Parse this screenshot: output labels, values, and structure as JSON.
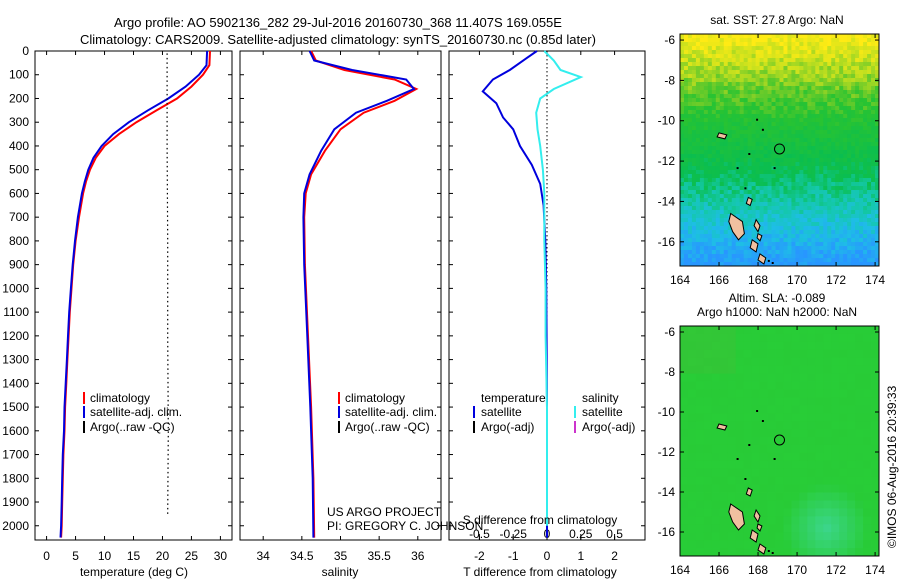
{
  "title": {
    "line1": "Argo profile: AO 5902136_282 29-Jul-2016 20160730_368 11.407S 169.055E",
    "line2": "Climatology: CARS2009. Satellite-adjusted climatology: synTS_20160730.nc (0.85d later)"
  },
  "colors": {
    "climatology": "#ff0000",
    "satellite": "#0000dd",
    "argo": "#000000",
    "satellite_s": "#33eeee",
    "argo_s": "#cc33cc"
  },
  "chart_data": [
    {
      "type": "line",
      "name": "temperature-profile",
      "xlabel": "temperature (deg C)",
      "xlim": [
        -2,
        32
      ],
      "ylim": [
        2060,
        0
      ],
      "xticks": [
        0,
        5,
        10,
        15,
        20,
        25,
        30
      ],
      "yticks": [
        0,
        100,
        200,
        300,
        400,
        500,
        600,
        700,
        800,
        900,
        1000,
        1100,
        1200,
        1300,
        1400,
        1500,
        1600,
        1700,
        1800,
        1900,
        2000
      ],
      "legend": [
        "climatology",
        "satellite-adj. clim.",
        "Argo(..raw -QC)"
      ],
      "series": [
        {
          "name": "climatology",
          "color": "climatology",
          "points": [
            [
              28.2,
              0
            ],
            [
              28.1,
              60
            ],
            [
              27,
              100
            ],
            [
              25,
              150
            ],
            [
              22.5,
              200
            ],
            [
              19,
              250
            ],
            [
              15.5,
              300
            ],
            [
              12.5,
              350
            ],
            [
              10,
              400
            ],
            [
              8.5,
              450
            ],
            [
              7.5,
              500
            ],
            [
              6.8,
              550
            ],
            [
              6.3,
              600
            ],
            [
              5.6,
              700
            ],
            [
              5,
              800
            ],
            [
              4.6,
              900
            ],
            [
              4.3,
              1000
            ],
            [
              4,
              1100
            ],
            [
              3.8,
              1200
            ],
            [
              3.6,
              1300
            ],
            [
              3.4,
              1400
            ],
            [
              3.2,
              1500
            ],
            [
              3.1,
              1600
            ],
            [
              2.9,
              1700
            ],
            [
              2.8,
              1800
            ],
            [
              2.7,
              1900
            ],
            [
              2.6,
              2000
            ],
            [
              2.5,
              2050
            ]
          ]
        },
        {
          "name": "satellite-adj. clim.",
          "color": "satellite",
          "points": [
            [
              27.7,
              0
            ],
            [
              27.6,
              60
            ],
            [
              26.3,
              100
            ],
            [
              24,
              150
            ],
            [
              21,
              200
            ],
            [
              17.5,
              250
            ],
            [
              14.2,
              300
            ],
            [
              11.5,
              350
            ],
            [
              9.5,
              400
            ],
            [
              8.1,
              450
            ],
            [
              7.2,
              500
            ],
            [
              6.6,
              550
            ],
            [
              6.1,
              600
            ],
            [
              5.4,
              700
            ],
            [
              4.9,
              800
            ],
            [
              4.5,
              900
            ],
            [
              4.2,
              1000
            ],
            [
              3.9,
              1100
            ],
            [
              3.7,
              1200
            ],
            [
              3.5,
              1300
            ],
            [
              3.3,
              1400
            ],
            [
              3.1,
              1500
            ],
            [
              3,
              1600
            ],
            [
              2.8,
              1700
            ],
            [
              2.7,
              1800
            ],
            [
              2.6,
              1900
            ],
            [
              2.5,
              2000
            ],
            [
              2.4,
              2050
            ]
          ]
        },
        {
          "name": "Argo(..raw -QC)",
          "color": "argo",
          "dotted": true,
          "points": [
            [
              20.8,
              10
            ],
            [
              20.8,
              400
            ],
            [
              20.9,
              800
            ],
            [
              20.9,
              1200
            ],
            [
              21,
              1600
            ],
            [
              20.9,
              1950
            ]
          ]
        }
      ]
    },
    {
      "type": "line",
      "name": "salinity-profile",
      "xlabel": "salinity",
      "xlim": [
        33.7,
        36.3
      ],
      "ylim": [
        2060,
        0
      ],
      "xticks": [
        34,
        34.5,
        35,
        35.5,
        36
      ],
      "legend": [
        "climatology",
        "satellite-adj. clim.",
        "Argo(..raw -QC)"
      ],
      "annotation": [
        "US ARGO PROJECT",
        "PI: GREGORY C. JOHNSON"
      ],
      "series": [
        {
          "name": "climatology",
          "color": "climatology",
          "points": [
            [
              34.62,
              0
            ],
            [
              34.68,
              40
            ],
            [
              35.05,
              80
            ],
            [
              35.7,
              120
            ],
            [
              35.98,
              160
            ],
            [
              35.7,
              210
            ],
            [
              35.3,
              260
            ],
            [
              35,
              330
            ],
            [
              34.8,
              420
            ],
            [
              34.62,
              520
            ],
            [
              34.55,
              600
            ],
            [
              34.53,
              700
            ],
            [
              34.54,
              900
            ],
            [
              34.58,
              1200
            ],
            [
              34.62,
              1500
            ],
            [
              34.65,
              1800
            ],
            [
              34.66,
              2050
            ]
          ]
        },
        {
          "name": "satellite-adj. clim.",
          "color": "satellite",
          "points": [
            [
              34.6,
              0
            ],
            [
              34.66,
              40
            ],
            [
              35.15,
              80
            ],
            [
              35.85,
              120
            ],
            [
              35.95,
              160
            ],
            [
              35.6,
              210
            ],
            [
              35.2,
              260
            ],
            [
              34.92,
              330
            ],
            [
              34.75,
              420
            ],
            [
              34.6,
              520
            ],
            [
              34.53,
              600
            ],
            [
              34.52,
              700
            ],
            [
              34.53,
              900
            ],
            [
              34.57,
              1200
            ],
            [
              34.61,
              1500
            ],
            [
              34.64,
              1800
            ],
            [
              34.65,
              2050
            ]
          ]
        }
      ]
    },
    {
      "type": "line",
      "name": "difference-profile",
      "xlabel": "T difference from climatology",
      "xlabel_top": "S difference from climatology",
      "xlim": [
        -2.9,
        2.9
      ],
      "ylim": [
        2060,
        0
      ],
      "xticks": [
        -2,
        -1,
        0,
        1,
        2
      ],
      "sticks": [
        {
          "v": -0.5,
          "label": "-0.5"
        },
        {
          "v": -0.25,
          "label": "-0.25"
        },
        {
          "v": 0,
          "label": "0"
        },
        {
          "v": 0.25,
          "label": "0.25"
        },
        {
          "v": 0.5,
          "label": "0.5"
        }
      ],
      "s_scale": 4,
      "legend_left": [
        "temperature",
        "satellite",
        "Argo(-adj)"
      ],
      "legend_right": [
        "salinity",
        "satellite",
        "Argo(-adj)"
      ],
      "series": [
        {
          "name": "temperature satellite",
          "color": "satellite",
          "points": [
            [
              -0.3,
              0
            ],
            [
              -0.6,
              30
            ],
            [
              -1.1,
              80
            ],
            [
              -1.6,
              120
            ],
            [
              -1.9,
              170
            ],
            [
              -1.5,
              220
            ],
            [
              -1.3,
              280
            ],
            [
              -1.0,
              330
            ],
            [
              -0.8,
              400
            ],
            [
              -0.45,
              480
            ],
            [
              -0.2,
              560
            ],
            [
              -0.1,
              650
            ],
            [
              -0.05,
              800
            ],
            [
              -0.02,
              1000
            ],
            [
              0,
              1500
            ],
            [
              0,
              2000
            ],
            [
              0,
              2050
            ]
          ]
        },
        {
          "name": "salinity satellite",
          "color": "satellite_s",
          "points": [
            [
              -0.02,
              0
            ],
            [
              0.05,
              40
            ],
            [
              0.1,
              80
            ],
            [
              0.25,
              110
            ],
            [
              0.05,
              160
            ],
            [
              -0.05,
              200
            ],
            [
              -0.08,
              260
            ],
            [
              -0.07,
              330
            ],
            [
              -0.05,
              400
            ],
            [
              -0.03,
              500
            ],
            [
              -0.02,
              600
            ],
            [
              -0.02,
              800
            ],
            [
              -0.01,
              1000
            ],
            [
              -0.01,
              1200
            ],
            [
              0,
              1500
            ],
            [
              0,
              2000
            ]
          ]
        }
      ]
    },
    {
      "type": "heatmap",
      "name": "sst-map",
      "title": "sat. SST: 27.8 Argo: NaN",
      "xlim": [
        164,
        174.2
      ],
      "ylim": [
        -17.2,
        -5.7
      ],
      "xticks": [
        164,
        166,
        168,
        170,
        172,
        174
      ],
      "yticks": [
        -6,
        -8,
        -10,
        -12,
        -14,
        -16
      ],
      "marker": [
        169.1,
        -11.4
      ]
    },
    {
      "type": "heatmap",
      "name": "sla-map",
      "title_line1": "Altim. SLA: -0.089",
      "title_line2": "Argo h1000: NaN h2000: NaN",
      "xlim": [
        164,
        174.2
      ],
      "ylim": [
        -17.2,
        -5.7
      ],
      "xticks": [
        164,
        166,
        168,
        170,
        172,
        174
      ],
      "yticks": [
        -6,
        -8,
        -10,
        -12,
        -14,
        -16
      ],
      "marker": [
        169.1,
        -11.4
      ]
    }
  ],
  "footer": "©IMOS 06-Aug-2016 20:39:33"
}
